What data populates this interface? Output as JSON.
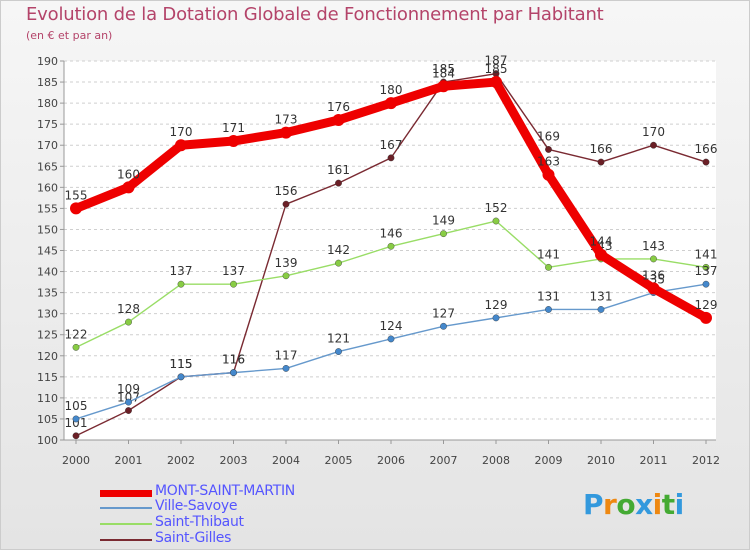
{
  "title": "Evolution de la Dotation Globale de Fonctionnement par Habitant",
  "subtitle": "(en € et par an)",
  "logo": "Proxiti",
  "chart_data": {
    "type": "line",
    "categories": [
      "2000",
      "2001",
      "2002",
      "2003",
      "2004",
      "2005",
      "2006",
      "2007",
      "2008",
      "2009",
      "2010",
      "2011",
      "2012"
    ],
    "ylim": [
      100,
      190
    ],
    "yticks": [
      100,
      105,
      110,
      115,
      120,
      125,
      130,
      135,
      140,
      145,
      150,
      155,
      160,
      165,
      170,
      175,
      180,
      185,
      190
    ],
    "title": "Evolution de la Dotation Globale de Fonctionnement par Habitant",
    "ylabel": "(en € et par an)",
    "xlabel": "",
    "grid": "horizontal dashed",
    "series": [
      {
        "name": "Saint-Gilles",
        "color": "#7a2a32",
        "marker": "#6b1f26",
        "values": [
          101,
          107,
          115,
          116,
          156,
          161,
          167,
          185,
          187,
          169,
          166,
          170,
          166
        ]
      },
      {
        "name": "Saint-Thibaut",
        "color": "#99dd66",
        "marker": "#88cc44",
        "values": [
          122,
          128,
          137,
          137,
          139,
          142,
          146,
          149,
          152,
          141,
          143,
          143,
          141
        ]
      },
      {
        "name": "Ville-Savoye",
        "color": "#6699cc",
        "marker": "#4488cc",
        "values": [
          105,
          109,
          115,
          116,
          117,
          121,
          124,
          127,
          129,
          131,
          131,
          135,
          137
        ]
      },
      {
        "name": "MONT-SAINT-MARTIN",
        "color": "#ee0000",
        "marker": "#ee0000",
        "values": [
          155,
          160,
          170,
          171,
          173,
          176,
          180,
          184,
          185,
          163,
          144,
          136,
          129
        ]
      }
    ],
    "legend": [
      {
        "name": "MONT-SAINT-MARTIN",
        "color": "#ee0000",
        "text_color": "#5555ff"
      },
      {
        "name": "Ville-Savoye",
        "color": "#6699cc",
        "text_color": "#5555ff"
      },
      {
        "name": "Saint-Thibaut",
        "color": "#99dd66",
        "text_color": "#5555ff"
      },
      {
        "name": "Saint-Gilles",
        "color": "#7a2a32",
        "text_color": "#5555ff"
      }
    ]
  }
}
